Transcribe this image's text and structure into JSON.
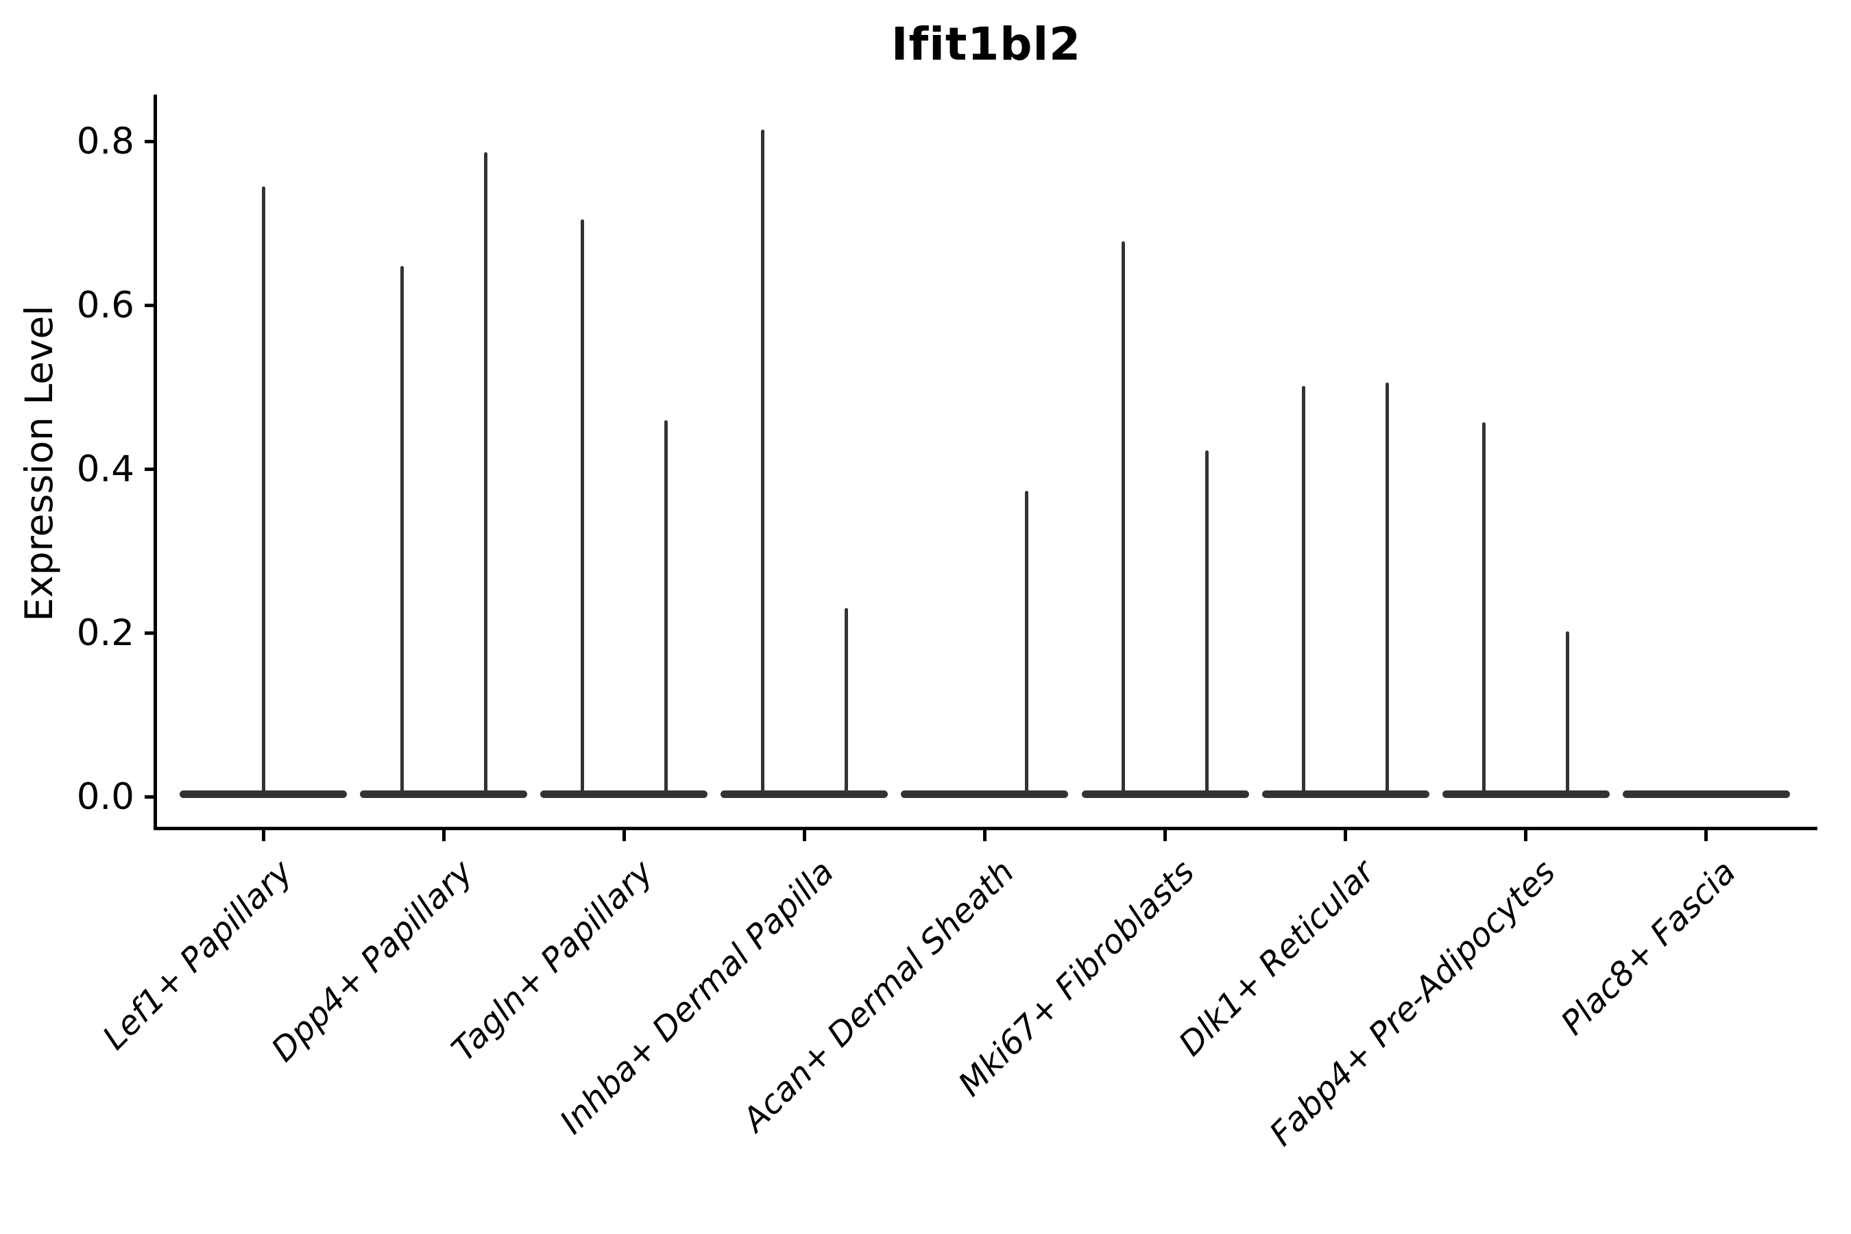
{
  "chart_data": {
    "type": "violin",
    "title": "Ifit1bl2",
    "xlabel": "",
    "ylabel": "Expression Level",
    "ylim": [
      0,
      0.86
    ],
    "yticks": [
      0.0,
      0.2,
      0.4,
      0.6,
      0.8
    ],
    "grid": false,
    "legend": "none",
    "colors": {
      "violin": "#333333",
      "axis": "#000000",
      "text": "#000000"
    },
    "categories": [
      "Lef1+ Papillary",
      "Dpp4+ Papillary",
      "Tagln+ Papillary",
      "Inhba+ Dermal Papilla",
      "Acan+ Dermal Sheath",
      "Mki67+ Fibroblasts",
      "Dlk1+ Reticular",
      "Fabp4+ Pre-Adipocytes",
      "Plac8+ Fascia"
    ],
    "violins": [
      {
        "category": "Lef1+ Papillary",
        "spikes": [
          {
            "position": "center",
            "max": 0.745
          }
        ]
      },
      {
        "category": "Dpp4+ Papillary",
        "spikes": [
          {
            "position": "left",
            "max": 0.648
          },
          {
            "position": "right",
            "max": 0.787
          }
        ]
      },
      {
        "category": "Tagln+ Papillary",
        "spikes": [
          {
            "position": "left",
            "max": 0.705
          },
          {
            "position": "right",
            "max": 0.46
          }
        ]
      },
      {
        "category": "Inhba+ Dermal Papilla",
        "spikes": [
          {
            "position": "left",
            "max": 0.815
          },
          {
            "position": "right",
            "max": 0.231
          }
        ]
      },
      {
        "category": "Acan+ Dermal Sheath",
        "spikes": [
          {
            "position": "right",
            "max": 0.374
          }
        ]
      },
      {
        "category": "Mki67+ Fibroblasts",
        "spikes": [
          {
            "position": "left",
            "max": 0.678
          },
          {
            "position": "right",
            "max": 0.423
          }
        ]
      },
      {
        "category": "Dlk1+ Reticular",
        "spikes": [
          {
            "position": "left",
            "max": 0.502
          },
          {
            "position": "right",
            "max": 0.506
          }
        ]
      },
      {
        "category": "Fabp4+ Pre-Adipocytes",
        "spikes": [
          {
            "position": "left",
            "max": 0.457
          },
          {
            "position": "right",
            "max": 0.202
          }
        ]
      },
      {
        "category": "Plac8+ Fascia",
        "spikes": []
      }
    ],
    "baseline_value": 0.0
  }
}
